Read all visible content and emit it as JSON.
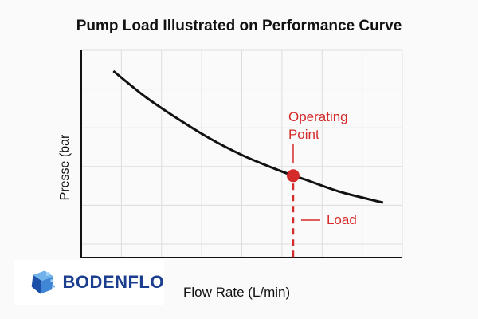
{
  "chart_data": {
    "type": "line",
    "title": "Pump Load Illustrated on Performance Curve",
    "xlabel": "Flow Rate (L/min)",
    "ylabel": "Presse (bar",
    "xlim": [
      0,
      10
    ],
    "ylim": [
      0,
      10
    ],
    "grid": true,
    "series": [
      {
        "x": [
          1.0,
          2.0,
          3.0,
          4.0,
          5.0,
          6.0,
          6.6,
          7.0,
          8.0,
          9.0,
          9.4
        ],
        "y": [
          9.0,
          7.75,
          6.7,
          5.75,
          4.95,
          4.3,
          3.95,
          3.75,
          3.2,
          2.8,
          2.65
        ]
      }
    ],
    "annotations": {
      "operating_point": {
        "label_line1": "Operating",
        "label_line2": "Point",
        "x": 6.6,
        "y": 3.95
      },
      "load": {
        "label": "Load"
      }
    },
    "colors": {
      "curve": "#111111",
      "marker": "#d42a2a",
      "grid": "#dddddd"
    }
  },
  "logo": {
    "text": "BODENFLO"
  }
}
